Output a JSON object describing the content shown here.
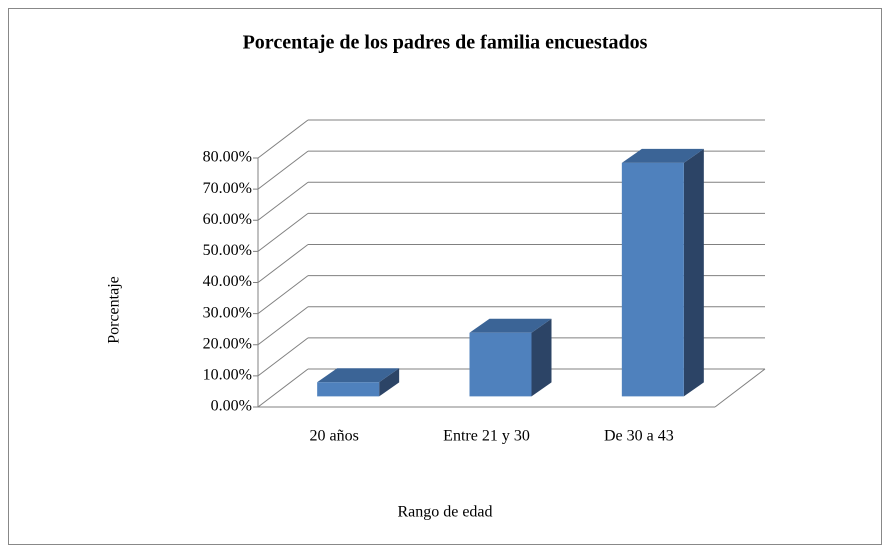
{
  "chart_data": {
    "type": "bar3d",
    "title": "Porcentaje de los padres de familia encuestados",
    "categories": [
      "20 años",
      "Entre 21 y 30",
      "De 30 a 43"
    ],
    "values": [
      4.55,
      20.45,
      75.0
    ],
    "color": "#4f81bd",
    "xlabel": "Rango de edad",
    "ylabel": "Porcentaje",
    "ylim": [
      0,
      80
    ],
    "yticks": [
      {
        "value": 0,
        "label": "0.00%"
      },
      {
        "value": 10,
        "label": "10.00%"
      },
      {
        "value": 20,
        "label": "20.00%"
      },
      {
        "value": 30,
        "label": "30.00%"
      },
      {
        "value": 40,
        "label": "40.00%"
      },
      {
        "value": 50,
        "label": "50.00%"
      },
      {
        "value": 60,
        "label": "60.00%"
      },
      {
        "value": 70,
        "label": "70.00%"
      },
      {
        "value": 80,
        "label": "80.00%"
      }
    ],
    "grid": true
  }
}
